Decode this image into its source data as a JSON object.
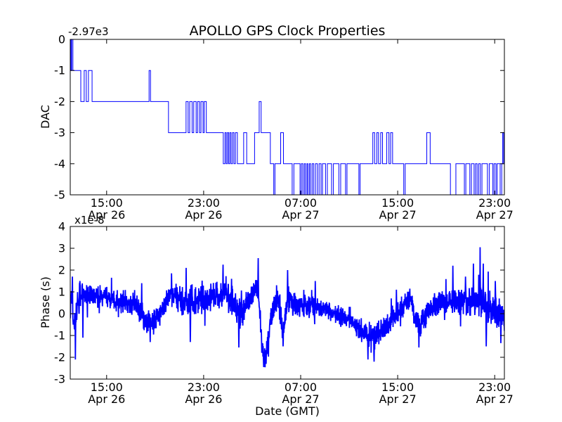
{
  "figure": {
    "title": "APOLLO GPS Clock Properties",
    "background": "#ffffff",
    "frame_color": "#000000",
    "line_color": "#0000ff"
  },
  "chart_data": [
    {
      "id": "dac",
      "type": "line",
      "line_style": "step-post",
      "title": "APOLLO GPS Clock Properties",
      "ylabel": "DAC",
      "y_offset_text": "-2.97e3",
      "ylim": [
        -5,
        0
      ],
      "yticks": [
        0,
        -1,
        -2,
        -3,
        -4,
        -5
      ],
      "x_hours_range": [
        0,
        35.8
      ],
      "xtick_hours": [
        3,
        11,
        19,
        27,
        35
      ],
      "xtick_labels": [
        [
          "15:00",
          "Apr 26"
        ],
        [
          "23:00",
          "Apr 26"
        ],
        [
          "07:00",
          "Apr 27"
        ],
        [
          "15:00",
          "Apr 27"
        ],
        [
          "23:00",
          "Apr 27"
        ]
      ],
      "color": "#0000ff",
      "line_width": 1,
      "steps": [
        [
          0.0,
          0
        ],
        [
          0.06,
          -1
        ],
        [
          0.12,
          0
        ],
        [
          0.22,
          -1
        ],
        [
          0.87,
          -2
        ],
        [
          1.15,
          -1
        ],
        [
          1.32,
          -2
        ],
        [
          1.5,
          -1
        ],
        [
          1.8,
          -2
        ],
        [
          6.5,
          -1
        ],
        [
          6.62,
          -2
        ],
        [
          8.1,
          -3
        ],
        [
          9.55,
          -2
        ],
        [
          9.72,
          -3
        ],
        [
          9.85,
          -2
        ],
        [
          10.05,
          -3
        ],
        [
          10.18,
          -2
        ],
        [
          10.38,
          -3
        ],
        [
          10.5,
          -2
        ],
        [
          10.66,
          -3
        ],
        [
          10.78,
          -2
        ],
        [
          10.95,
          -3
        ],
        [
          11.05,
          -2
        ],
        [
          11.22,
          -3
        ],
        [
          12.62,
          -4
        ],
        [
          12.76,
          -3
        ],
        [
          12.86,
          -4
        ],
        [
          12.96,
          -3
        ],
        [
          13.06,
          -4
        ],
        [
          13.16,
          -3
        ],
        [
          13.26,
          -4
        ],
        [
          13.38,
          -3
        ],
        [
          13.5,
          -4
        ],
        [
          13.62,
          -3
        ],
        [
          13.78,
          -4
        ],
        [
          14.3,
          -3
        ],
        [
          14.55,
          -4
        ],
        [
          15.2,
          -3
        ],
        [
          15.58,
          -2
        ],
        [
          15.74,
          -3
        ],
        [
          16.5,
          -4
        ],
        [
          16.78,
          -5
        ],
        [
          16.88,
          -4
        ],
        [
          17.35,
          -3
        ],
        [
          17.58,
          -4
        ],
        [
          18.3,
          -5
        ],
        [
          18.44,
          -4
        ],
        [
          18.95,
          -5
        ],
        [
          19.06,
          -4
        ],
        [
          19.18,
          -5
        ],
        [
          19.3,
          -4
        ],
        [
          19.4,
          -5
        ],
        [
          19.52,
          -4
        ],
        [
          19.6,
          -5
        ],
        [
          19.72,
          -4
        ],
        [
          19.82,
          -5
        ],
        [
          19.95,
          -4
        ],
        [
          20.08,
          -5
        ],
        [
          20.22,
          -4
        ],
        [
          20.38,
          -5
        ],
        [
          20.52,
          -4
        ],
        [
          20.68,
          -5
        ],
        [
          20.8,
          -4
        ],
        [
          21.05,
          -5
        ],
        [
          21.2,
          -4
        ],
        [
          21.55,
          -5
        ],
        [
          21.7,
          -4
        ],
        [
          22.15,
          -5
        ],
        [
          22.3,
          -4
        ],
        [
          22.7,
          -5
        ],
        [
          22.82,
          -4
        ],
        [
          23.8,
          -5
        ],
        [
          23.9,
          -4
        ],
        [
          24.95,
          -3
        ],
        [
          25.1,
          -4
        ],
        [
          25.28,
          -3
        ],
        [
          25.42,
          -4
        ],
        [
          25.6,
          -3
        ],
        [
          25.75,
          -4
        ],
        [
          26.1,
          -3
        ],
        [
          26.28,
          -4
        ],
        [
          26.42,
          -3
        ],
        [
          26.58,
          -4
        ],
        [
          27.5,
          -5
        ],
        [
          27.62,
          -4
        ],
        [
          29.4,
          -3
        ],
        [
          29.68,
          -4
        ],
        [
          31.35,
          -5
        ],
        [
          31.8,
          -4
        ],
        [
          32.5,
          -5
        ],
        [
          32.62,
          -4
        ],
        [
          32.95,
          -5
        ],
        [
          33.08,
          -4
        ],
        [
          33.3,
          -5
        ],
        [
          33.42,
          -4
        ],
        [
          33.55,
          -5
        ],
        [
          33.68,
          -4
        ],
        [
          33.82,
          -5
        ],
        [
          33.95,
          -4
        ],
        [
          34.4,
          -5
        ],
        [
          34.55,
          -4
        ],
        [
          34.85,
          -5
        ],
        [
          34.95,
          -4
        ],
        [
          35.1,
          -5
        ],
        [
          35.2,
          -4
        ],
        [
          35.45,
          -5
        ],
        [
          35.58,
          -4
        ],
        [
          35.66,
          -3
        ],
        [
          35.74,
          -4
        ]
      ]
    },
    {
      "id": "phase",
      "type": "line",
      "line_style": "noisy",
      "ylabel": "Phase (s)",
      "y_offset_text": "x1e-8",
      "xlabel": "Date (GMT)",
      "ylim": [
        -3,
        4
      ],
      "yticks": [
        4,
        3,
        2,
        1,
        0,
        -1,
        -2,
        -3
      ],
      "x_hours_range": [
        0,
        35.8
      ],
      "xtick_hours": [
        3,
        11,
        19,
        27,
        35
      ],
      "xtick_labels": [
        [
          "15:00",
          "Apr 26"
        ],
        [
          "23:00",
          "Apr 26"
        ],
        [
          "07:00",
          "Apr 27"
        ],
        [
          "15:00",
          "Apr 27"
        ],
        [
          "23:00",
          "Apr 27"
        ]
      ],
      "color": "#0000ff",
      "line_width": 1.8,
      "units": "1e-8 s",
      "samples": 2200,
      "noise_seed": 20240427,
      "trend": [
        [
          0.0,
          0.3
        ],
        [
          0.1,
          0.9
        ],
        [
          0.3,
          -0.6
        ],
        [
          0.5,
          0.2
        ],
        [
          0.8,
          0.9
        ],
        [
          1.5,
          0.75
        ],
        [
          2.5,
          0.85
        ],
        [
          3.5,
          0.65
        ],
        [
          4.5,
          0.5
        ],
        [
          5.3,
          0.4
        ],
        [
          5.9,
          0.0
        ],
        [
          6.4,
          -0.4
        ],
        [
          7.0,
          -0.35
        ],
        [
          7.6,
          0.1
        ],
        [
          8.3,
          0.9
        ],
        [
          8.9,
          0.7
        ],
        [
          9.6,
          0.5
        ],
        [
          10.4,
          0.6
        ],
        [
          11.2,
          0.7
        ],
        [
          12.0,
          0.85
        ],
        [
          12.8,
          0.8
        ],
        [
          13.4,
          0.5
        ],
        [
          13.9,
          -0.1
        ],
        [
          14.4,
          0.45
        ],
        [
          15.0,
          0.7
        ],
        [
          15.4,
          1.3
        ],
        [
          15.6,
          0.2
        ],
        [
          15.85,
          -1.9
        ],
        [
          16.1,
          -2.0
        ],
        [
          16.5,
          -0.5
        ],
        [
          16.9,
          0.75
        ],
        [
          17.2,
          0.7
        ],
        [
          17.5,
          -0.9
        ],
        [
          17.75,
          -0.2
        ],
        [
          17.95,
          0.9
        ],
        [
          18.3,
          0.5
        ],
        [
          19.0,
          0.35
        ],
        [
          20.0,
          0.3
        ],
        [
          21.0,
          0.15
        ],
        [
          22.0,
          0.0
        ],
        [
          22.8,
          -0.25
        ],
        [
          23.6,
          -0.5
        ],
        [
          24.4,
          -0.95
        ],
        [
          25.1,
          -1.05
        ],
        [
          25.7,
          -0.8
        ],
        [
          26.3,
          -0.4
        ],
        [
          27.0,
          0.0
        ],
        [
          27.7,
          0.6
        ],
        [
          28.1,
          0.6
        ],
        [
          28.5,
          -0.3
        ],
        [
          28.9,
          -0.45
        ],
        [
          29.4,
          0.1
        ],
        [
          30.0,
          0.4
        ],
        [
          30.8,
          0.55
        ],
        [
          31.6,
          0.5
        ],
        [
          32.3,
          0.55
        ],
        [
          33.0,
          0.35
        ],
        [
          33.6,
          0.55
        ],
        [
          34.1,
          0.35
        ],
        [
          34.7,
          0.3
        ],
        [
          35.3,
          0.0
        ],
        [
          35.8,
          -0.2
        ]
      ],
      "noise_amp": [
        [
          0,
          0.5
        ],
        [
          1,
          0.42
        ],
        [
          3,
          0.35
        ],
        [
          6,
          0.4
        ],
        [
          8,
          0.42
        ],
        [
          10,
          0.45
        ],
        [
          12,
          0.5
        ],
        [
          14,
          0.5
        ],
        [
          15.3,
          0.4
        ],
        [
          16.6,
          0.45
        ],
        [
          18,
          0.5
        ],
        [
          19,
          0.38
        ],
        [
          20.5,
          0.33
        ],
        [
          22,
          0.3
        ],
        [
          23.5,
          0.35
        ],
        [
          25,
          0.42
        ],
        [
          26.5,
          0.35
        ],
        [
          27.8,
          0.38
        ],
        [
          29,
          0.45
        ],
        [
          30.5,
          0.42
        ],
        [
          32,
          0.5
        ],
        [
          33.5,
          0.55
        ],
        [
          34.5,
          0.6
        ],
        [
          35.8,
          0.45
        ]
      ],
      "spikes": [
        [
          0.18,
          1.7
        ],
        [
          0.42,
          -2.1
        ],
        [
          0.8,
          1.5
        ],
        [
          1.05,
          -1.1
        ],
        [
          5.9,
          1.4
        ],
        [
          6.6,
          -1.3
        ],
        [
          8.35,
          1.85
        ],
        [
          9.55,
          2.1
        ],
        [
          9.9,
          -1.3
        ],
        [
          12.6,
          2.25
        ],
        [
          13.3,
          1.6
        ],
        [
          13.9,
          -1.55
        ],
        [
          15.5,
          2.55
        ],
        [
          15.95,
          -2.45
        ],
        [
          16.15,
          -2.3
        ],
        [
          17.55,
          -1.5
        ],
        [
          17.92,
          2.0
        ],
        [
          20.2,
          1.5
        ],
        [
          24.55,
          -2.1
        ],
        [
          25.05,
          -2.2
        ],
        [
          26.9,
          1.1
        ],
        [
          28.0,
          1.15
        ],
        [
          28.75,
          -1.55
        ],
        [
          31.55,
          2.2
        ],
        [
          32.6,
          1.7
        ],
        [
          33.25,
          2.3
        ],
        [
          33.8,
          3.05
        ],
        [
          34.05,
          2.3
        ],
        [
          34.3,
          -1.5
        ],
        [
          35.05,
          1.5
        ],
        [
          35.5,
          -1.35
        ]
      ]
    }
  ]
}
